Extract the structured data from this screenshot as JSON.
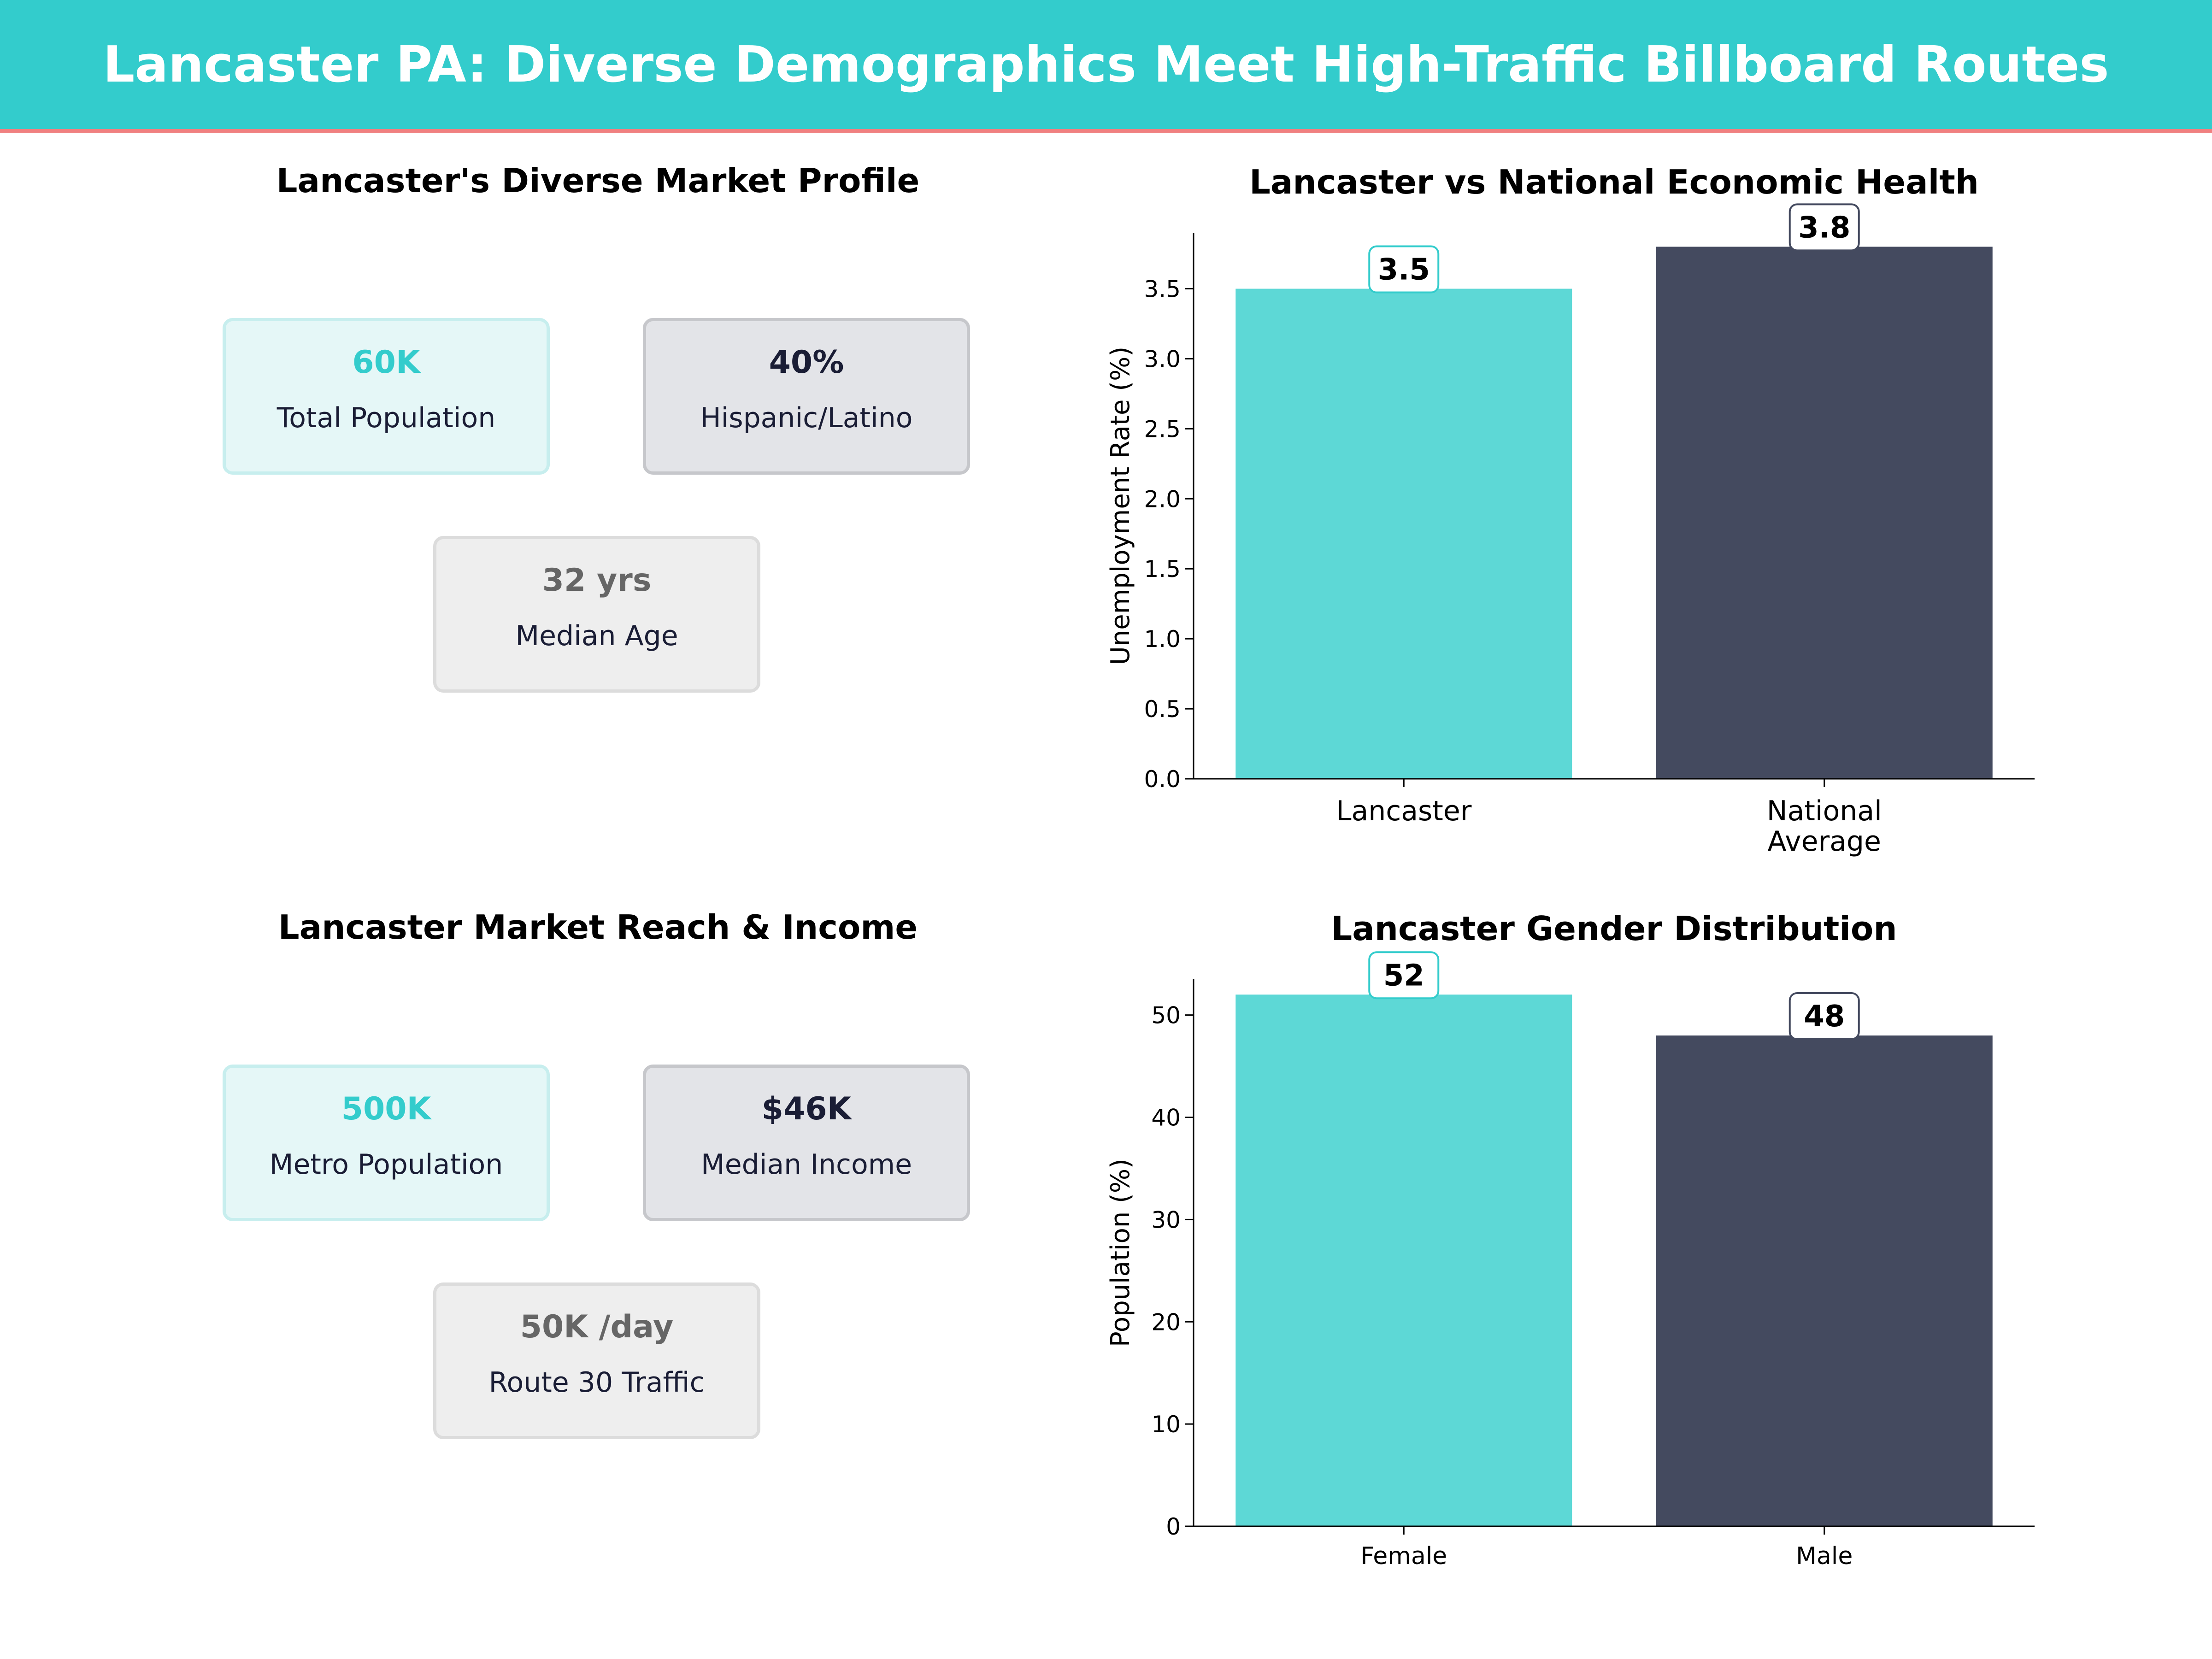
{
  "title": "Lancaster PA: Diverse Demographics Meet High-Traffic Billboard Routes",
  "colors": {
    "teal": "#5dd8d6",
    "navy": "#444a5f",
    "banner": "#33cccc",
    "accent_line": "#f08080"
  },
  "profile_panel": {
    "title": "Lancaster's Diverse Market Profile",
    "cards": [
      {
        "value": "60K",
        "label": "Total Population"
      },
      {
        "value": "40%",
        "label": "Hispanic/Latino"
      },
      {
        "value": "32  yrs",
        "label": "Median Age"
      }
    ]
  },
  "reach_panel": {
    "title": "Lancaster Market Reach & Income",
    "cards": [
      {
        "value": "500K",
        "label": "Metro Population"
      },
      {
        "value": "$46K",
        "label": "Median Income"
      },
      {
        "value": "50K /day",
        "label": "Route 30 Traffic"
      }
    ]
  },
  "chart_data": [
    {
      "type": "bar",
      "title": "Lancaster vs National Economic Health",
      "categories": [
        "Lancaster",
        "National\nAverage"
      ],
      "values": [
        3.5,
        3.8
      ],
      "ylabel": "Unemployment Rate (%)",
      "xlabel": "",
      "ylim": [
        0,
        3.9
      ],
      "yticks": [
        0.0,
        0.5,
        1.0,
        1.5,
        2.0,
        2.5,
        3.0,
        3.5
      ],
      "ytick_labels": [
        "0.0",
        "0.5",
        "1.0",
        "1.5",
        "2.0",
        "2.5",
        "3.0",
        "3.5"
      ],
      "value_labels": [
        "3.5",
        "3.8"
      ],
      "grid": false
    },
    {
      "type": "bar",
      "title": "Lancaster Gender Distribution",
      "categories": [
        "Female",
        "Male"
      ],
      "values": [
        52,
        48
      ],
      "ylabel": "Population (%)",
      "xlabel": "",
      "ylim": [
        0,
        53.5
      ],
      "yticks": [
        0,
        10,
        20,
        30,
        40,
        50
      ],
      "ytick_labels": [
        "0",
        "10",
        "20",
        "30",
        "40",
        "50"
      ],
      "value_labels": [
        "52",
        "48"
      ],
      "grid": false
    }
  ]
}
